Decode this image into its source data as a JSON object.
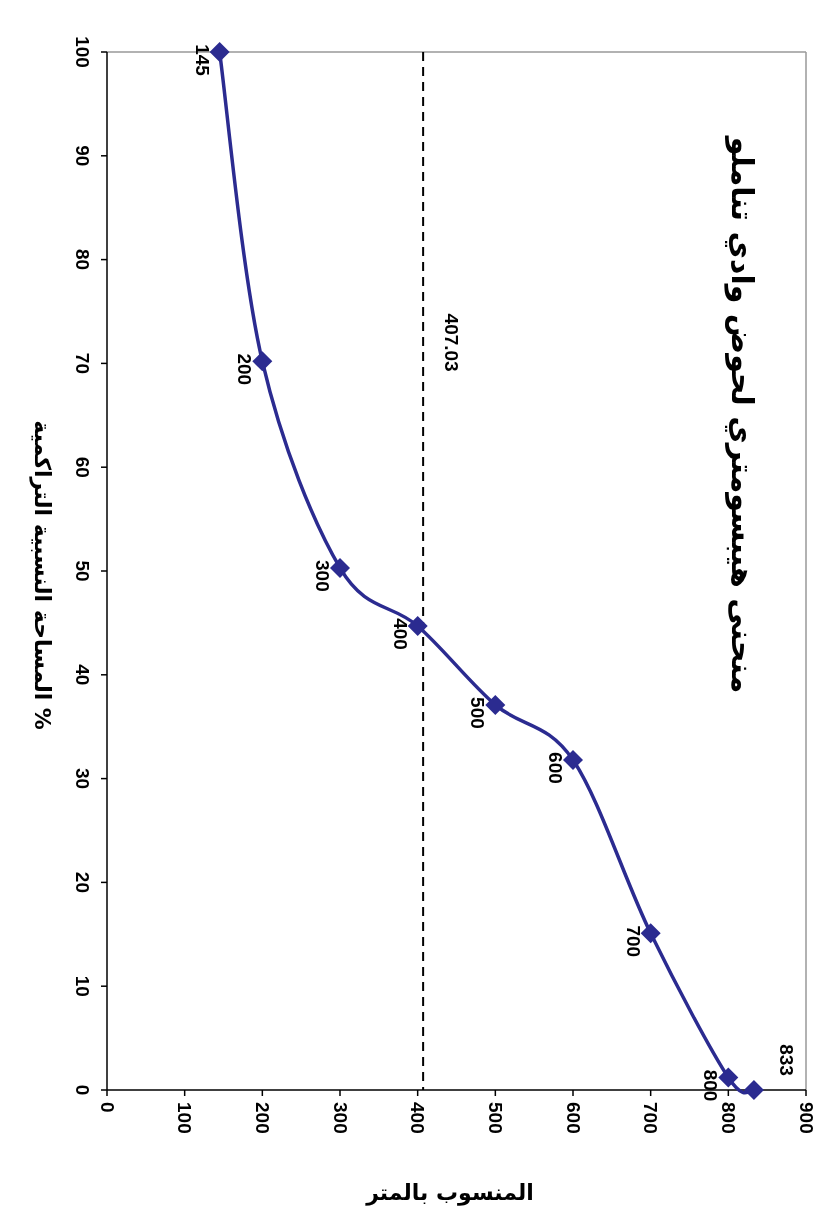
{
  "chart_data": {
    "type": "line",
    "title": "منحنى هيبسومتري لحوض وادي تناملو",
    "xlabel": "المنسوب بالمتر",
    "ylabel": "المساحة النسبية التراكمية %",
    "x": [
      145,
      200,
      300,
      400,
      500,
      600,
      700,
      800,
      833
    ],
    "series": [
      {
        "color": "#2b2b90",
        "values": [
          100,
          70.2,
          50.3,
          44.7,
          37.1,
          31.8,
          15.1,
          1.2,
          0
        ]
      }
    ],
    "xlim": [
      0,
      900
    ],
    "ylim": [
      0,
      100
    ],
    "xticks": [
      0,
      100,
      200,
      300,
      400,
      500,
      600,
      700,
      800,
      900
    ],
    "yticks": [
      0,
      10,
      20,
      30,
      40,
      50,
      60,
      70,
      80,
      90,
      100
    ],
    "marker": "diamond",
    "line_style": "solid",
    "ref_lines": [
      {
        "axis": "x",
        "value": 407.03,
        "label": "407.03",
        "color": "#000000",
        "line_style": "dashed"
      }
    ],
    "annotations": [
      {
        "text": "145",
        "x": 145,
        "y": 100
      },
      {
        "text": "200",
        "x": 200,
        "y": 70.2
      },
      {
        "text": "300",
        "x": 300,
        "y": 50.3
      },
      {
        "text": "400",
        "x": 400,
        "y": 44.7
      },
      {
        "text": "500",
        "x": 500,
        "y": 37.1
      },
      {
        "text": "600",
        "x": 600,
        "y": 31.8
      },
      {
        "text": "700",
        "x": 700,
        "y": 15.1
      },
      {
        "text": "800",
        "x": 800,
        "y": 1.2
      },
      {
        "text": "833",
        "x": 833,
        "y": 0
      }
    ]
  }
}
